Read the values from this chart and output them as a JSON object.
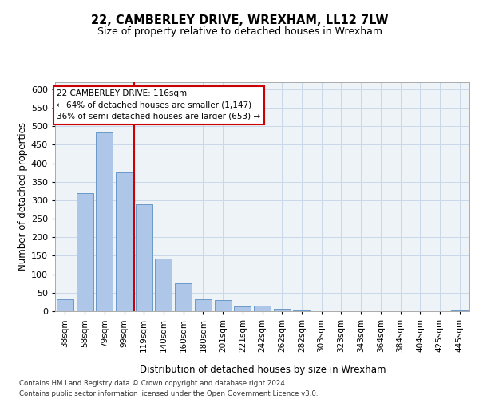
{
  "title_line1": "22, CAMBERLEY DRIVE, WREXHAM, LL12 7LW",
  "title_line2": "Size of property relative to detached houses in Wrexham",
  "xlabel": "Distribution of detached houses by size in Wrexham",
  "ylabel": "Number of detached properties",
  "categories": [
    "38sqm",
    "58sqm",
    "79sqm",
    "99sqm",
    "119sqm",
    "140sqm",
    "160sqm",
    "180sqm",
    "201sqm",
    "221sqm",
    "242sqm",
    "262sqm",
    "282sqm",
    "303sqm",
    "323sqm",
    "343sqm",
    "364sqm",
    "384sqm",
    "404sqm",
    "425sqm",
    "445sqm"
  ],
  "values": [
    33,
    320,
    482,
    375,
    290,
    143,
    75,
    33,
    30,
    14,
    15,
    6,
    2,
    1,
    1,
    1,
    1,
    0,
    0,
    0,
    3
  ],
  "bar_color": "#aec6e8",
  "bar_edge_color": "#5a8fc2",
  "grid_color": "#c8d8e8",
  "background_color": "#eef3f8",
  "property_line_color": "#cc0000",
  "annotation_text_line1": "22 CAMBERLEY DRIVE: 116sqm",
  "annotation_text_line2": "← 64% of detached houses are smaller (1,147)",
  "annotation_text_line3": "36% of semi-detached houses are larger (653) →",
  "annotation_box_facecolor": "#ffffff",
  "annotation_border_color": "#cc0000",
  "footer_line1": "Contains HM Land Registry data © Crown copyright and database right 2024.",
  "footer_line2": "Contains public sector information licensed under the Open Government Licence v3.0.",
  "ylim": [
    0,
    620
  ],
  "yticks": [
    0,
    50,
    100,
    150,
    200,
    250,
    300,
    350,
    400,
    450,
    500,
    550,
    600
  ]
}
